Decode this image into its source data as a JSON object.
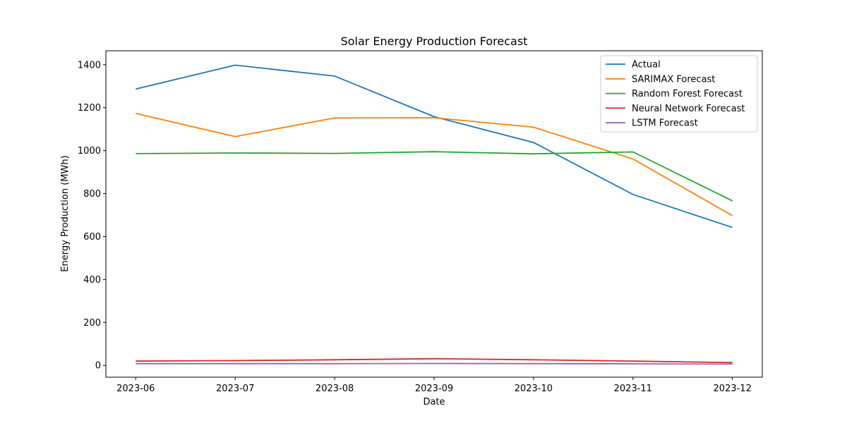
{
  "chart_data": {
    "type": "line",
    "title": "Solar Energy Production Forecast",
    "xlabel": "Date",
    "ylabel": "Energy Production (MWh)",
    "categories": [
      "2023-06",
      "2023-07",
      "2023-08",
      "2023-09",
      "2023-10",
      "2023-11",
      "2023-12"
    ],
    "ylim": [
      -55,
      1465
    ],
    "yticks": [
      0,
      200,
      400,
      600,
      800,
      1000,
      1200,
      1400
    ],
    "grid": false,
    "legend_position": "top-right",
    "series": [
      {
        "name": "Actual",
        "color": "#1f77b4",
        "values": [
          1287,
          1398,
          1347,
          1158,
          1038,
          796,
          642
        ]
      },
      {
        "name": "SARIMAX Forecast",
        "color": "#ff7f0e",
        "values": [
          1173,
          1065,
          1152,
          1153,
          1109,
          961,
          697
        ]
      },
      {
        "name": "Random Forest Forecast",
        "color": "#2ca02c",
        "values": [
          986,
          989,
          987,
          995,
          985,
          994,
          766
        ]
      },
      {
        "name": "Neural Network Forecast",
        "color": "#d62728",
        "values": [
          20,
          22,
          26,
          31,
          26,
          20,
          13
        ]
      },
      {
        "name": "LSTM Forecast",
        "color": "#9467bd",
        "values": [
          8,
          8,
          8,
          9,
          8,
          7,
          6
        ]
      }
    ]
  }
}
